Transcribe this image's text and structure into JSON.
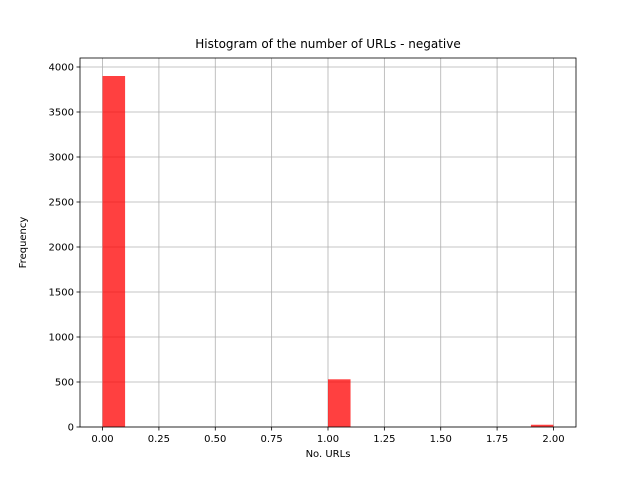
{
  "chart_data": {
    "type": "bar",
    "title": "Histogram of the number of URLs - negative",
    "xlabel": "No. URLs",
    "ylabel": "Frequency",
    "xlim": [
      -0.1,
      2.1
    ],
    "ylim": [
      0,
      4100
    ],
    "xticks": [
      0.0,
      0.25,
      0.5,
      0.75,
      1.0,
      1.25,
      1.5,
      1.75,
      2.0
    ],
    "xtick_labels": [
      "0.00",
      "0.25",
      "0.50",
      "0.75",
      "1.00",
      "1.25",
      "1.50",
      "1.75",
      "2.00"
    ],
    "yticks": [
      0,
      500,
      1000,
      1500,
      2000,
      2500,
      3000,
      3500,
      4000
    ],
    "ytick_labels": [
      "0",
      "500",
      "1000",
      "1500",
      "2000",
      "2500",
      "3000",
      "3500",
      "4000"
    ],
    "grid": true,
    "bar_color": "#ff0000",
    "bar_alpha": 0.75,
    "bins": [
      {
        "x0": 0.0,
        "x1": 0.1,
        "count": 3900
      },
      {
        "x0": 1.0,
        "x1": 1.1,
        "count": 530
      },
      {
        "x0": 1.9,
        "x1": 2.0,
        "count": 25
      }
    ]
  }
}
